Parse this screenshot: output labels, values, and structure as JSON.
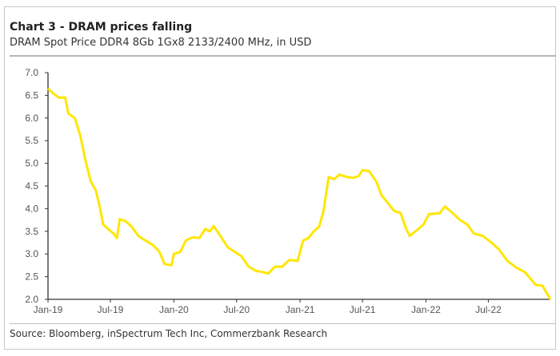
{
  "chart_data": {
    "type": "line",
    "title": "Chart 3 - DRAM prices falling",
    "subtitle": "DRAM Spot Price DDR4 8Gb 1Gx8 2133/2400 MHz, in USD",
    "source": "Source: Bloomberg, inSpectrum Tech Inc, Commerzbank Research",
    "xlabel": "",
    "ylabel": "",
    "ylim": [
      2.0,
      7.0
    ],
    "yticks": [
      "2.0",
      "2.5",
      "3.0",
      "3.5",
      "4.0",
      "4.5",
      "5.0",
      "5.5",
      "6.0",
      "6.5",
      "7.0"
    ],
    "xticks": [
      {
        "label": "Jan-19",
        "date": "2019-01-01"
      },
      {
        "label": "Jul-19",
        "date": "2019-07-01"
      },
      {
        "label": "Jan-20",
        "date": "2020-01-01"
      },
      {
        "label": "Jul-20",
        "date": "2020-07-01"
      },
      {
        "label": "Jan-21",
        "date": "2021-01-01"
      },
      {
        "label": "Jul-21",
        "date": "2021-07-01"
      },
      {
        "label": "Jan-22",
        "date": "2022-01-01"
      },
      {
        "label": "Jul-22",
        "date": "2022-07-01"
      }
    ],
    "xlim": [
      "2019-01-01",
      "2022-12-28"
    ],
    "grid": false,
    "line_color": "#FFE600",
    "series": [
      {
        "points": [
          [
            "2019-01-01",
            6.65
          ],
          [
            "2019-01-15",
            6.55
          ],
          [
            "2019-02-01",
            6.45
          ],
          [
            "2019-02-20",
            6.45
          ],
          [
            "2019-03-01",
            6.1
          ],
          [
            "2019-03-20",
            6.0
          ],
          [
            "2019-04-05",
            5.6
          ],
          [
            "2019-04-20",
            5.05
          ],
          [
            "2019-05-05",
            4.6
          ],
          [
            "2019-05-20",
            4.4
          ],
          [
            "2019-06-01",
            4.0
          ],
          [
            "2019-06-10",
            3.65
          ],
          [
            "2019-06-25",
            3.55
          ],
          [
            "2019-07-10",
            3.45
          ],
          [
            "2019-07-20",
            3.35
          ],
          [
            "2019-07-28",
            3.77
          ],
          [
            "2019-08-15",
            3.72
          ],
          [
            "2019-09-01",
            3.6
          ],
          [
            "2019-09-20",
            3.4
          ],
          [
            "2019-10-10",
            3.3
          ],
          [
            "2019-11-01",
            3.2
          ],
          [
            "2019-11-20",
            3.05
          ],
          [
            "2019-12-05",
            2.78
          ],
          [
            "2019-12-25",
            2.75
          ],
          [
            "2020-01-01",
            3.0
          ],
          [
            "2020-01-20",
            3.05
          ],
          [
            "2020-02-05",
            3.3
          ],
          [
            "2020-02-25",
            3.37
          ],
          [
            "2020-03-15",
            3.35
          ],
          [
            "2020-04-01",
            3.55
          ],
          [
            "2020-04-15",
            3.5
          ],
          [
            "2020-04-25",
            3.62
          ],
          [
            "2020-05-15",
            3.4
          ],
          [
            "2020-06-05",
            3.15
          ],
          [
            "2020-06-25",
            3.05
          ],
          [
            "2020-07-15",
            2.95
          ],
          [
            "2020-08-05",
            2.72
          ],
          [
            "2020-08-25",
            2.63
          ],
          [
            "2020-09-15",
            2.6
          ],
          [
            "2020-10-01",
            2.57
          ],
          [
            "2020-10-20",
            2.72
          ],
          [
            "2020-11-10",
            2.72
          ],
          [
            "2020-12-01",
            2.87
          ],
          [
            "2020-12-25",
            2.85
          ],
          [
            "2021-01-10",
            3.3
          ],
          [
            "2021-01-25",
            3.35
          ],
          [
            "2021-02-10",
            3.5
          ],
          [
            "2021-02-25",
            3.6
          ],
          [
            "2021-03-10",
            3.95
          ],
          [
            "2021-03-25",
            4.7
          ],
          [
            "2021-04-10",
            4.65
          ],
          [
            "2021-04-25",
            4.75
          ],
          [
            "2021-05-15",
            4.7
          ],
          [
            "2021-06-05",
            4.68
          ],
          [
            "2021-06-20",
            4.72
          ],
          [
            "2021-07-01",
            4.85
          ],
          [
            "2021-07-20",
            4.83
          ],
          [
            "2021-08-10",
            4.6
          ],
          [
            "2021-08-25",
            4.3
          ],
          [
            "2021-09-15",
            4.1
          ],
          [
            "2021-10-01",
            3.95
          ],
          [
            "2021-10-20",
            3.9
          ],
          [
            "2021-11-05",
            3.55
          ],
          [
            "2021-11-15",
            3.4
          ],
          [
            "2021-12-10",
            3.55
          ],
          [
            "2021-12-25",
            3.65
          ],
          [
            "2022-01-10",
            3.88
          ],
          [
            "2022-02-10",
            3.9
          ],
          [
            "2022-02-25",
            4.05
          ],
          [
            "2022-03-20",
            3.9
          ],
          [
            "2022-04-10",
            3.75
          ],
          [
            "2022-05-01",
            3.65
          ],
          [
            "2022-05-20",
            3.45
          ],
          [
            "2022-06-15",
            3.4
          ],
          [
            "2022-07-10",
            3.25
          ],
          [
            "2022-08-01",
            3.1
          ],
          [
            "2022-08-25",
            2.85
          ],
          [
            "2022-09-20",
            2.7
          ],
          [
            "2022-10-15",
            2.6
          ],
          [
            "2022-11-01",
            2.45
          ],
          [
            "2022-11-15",
            2.32
          ],
          [
            "2022-12-05",
            2.3
          ],
          [
            "2022-12-28",
            2.0
          ]
        ]
      }
    ]
  }
}
